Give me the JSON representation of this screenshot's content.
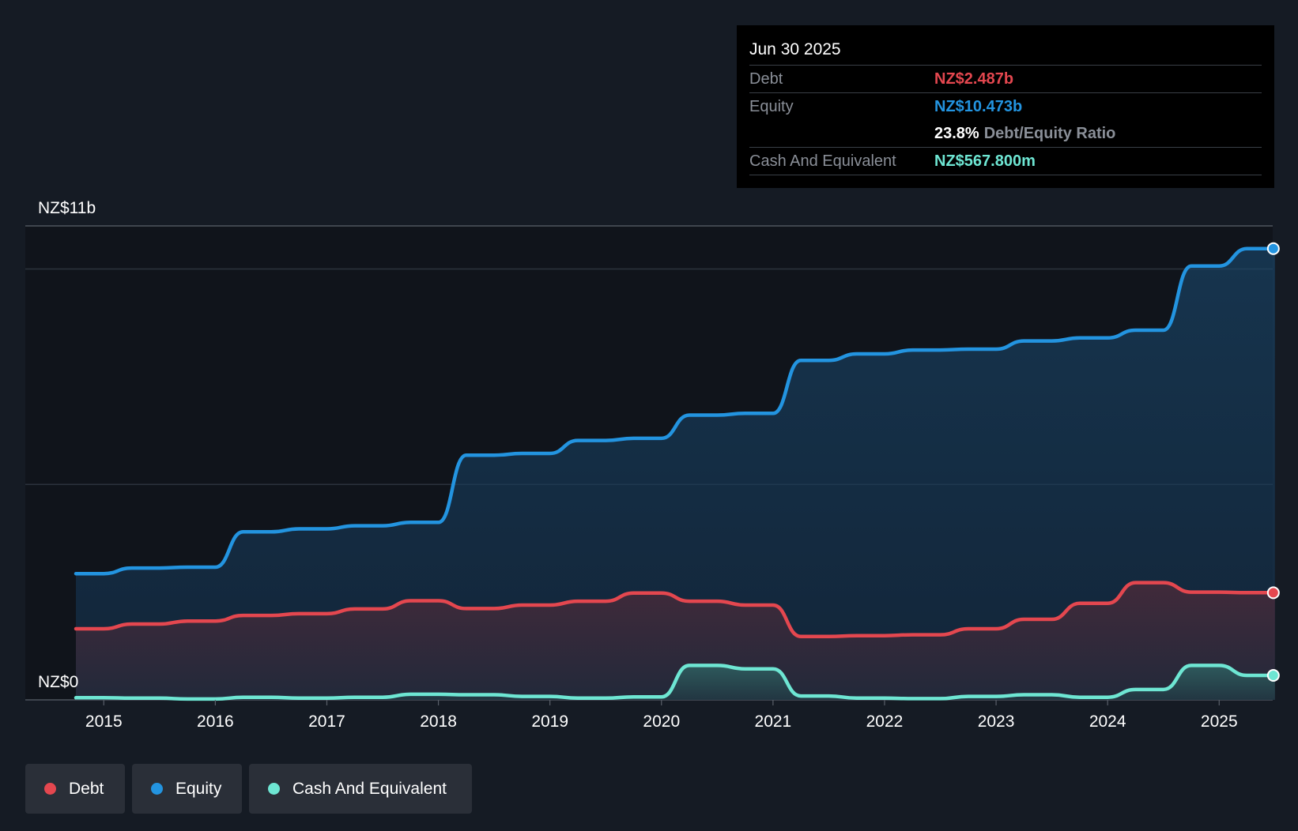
{
  "tooltip": {
    "date": "Jun 30 2025",
    "debt_label": "Debt",
    "debt_value": "NZ$2.487b",
    "equity_label": "Equity",
    "equity_value": "NZ$10.473b",
    "ratio_value": "23.8%",
    "ratio_label": "Debt/Equity Ratio",
    "cash_label": "Cash And Equivalent",
    "cash_value": "NZ$567.800m"
  },
  "legend": {
    "debt": "Debt",
    "equity": "Equity",
    "cash": "Cash And Equivalent"
  },
  "colors": {
    "debt": "#e4474f",
    "equity": "#2394e0",
    "cash": "#6ee6d3",
    "background": "#151b24"
  },
  "chart_data": {
    "type": "area",
    "ylabel_top": "NZ$11b",
    "ylabel_bottom": "NZ$0",
    "ylim": [
      0,
      11
    ],
    "xlim": [
      2014.75,
      2025.5
    ],
    "x_ticks": [
      "2015",
      "2016",
      "2017",
      "2018",
      "2019",
      "2020",
      "2021",
      "2022",
      "2023",
      "2024",
      "2025"
    ],
    "series": [
      {
        "name": "Equity",
        "color": "#2394e0",
        "points": [
          [
            2014.75,
            2.93
          ],
          [
            2015,
            2.93
          ],
          [
            2015.25,
            3.06
          ],
          [
            2015.5,
            3.06
          ],
          [
            2015.75,
            3.08
          ],
          [
            2016,
            3.08
          ],
          [
            2016.25,
            3.9
          ],
          [
            2016.5,
            3.9
          ],
          [
            2016.75,
            3.97
          ],
          [
            2017,
            3.97
          ],
          [
            2017.25,
            4.04
          ],
          [
            2017.5,
            4.04
          ],
          [
            2017.75,
            4.12
          ],
          [
            2018,
            4.12
          ],
          [
            2018.25,
            5.68
          ],
          [
            2018.5,
            5.68
          ],
          [
            2018.75,
            5.72
          ],
          [
            2019,
            5.72
          ],
          [
            2019.25,
            6.02
          ],
          [
            2019.5,
            6.02
          ],
          [
            2019.75,
            6.07
          ],
          [
            2020,
            6.07
          ],
          [
            2020.25,
            6.61
          ],
          [
            2020.5,
            6.61
          ],
          [
            2020.75,
            6.65
          ],
          [
            2021,
            6.65
          ],
          [
            2021.25,
            7.88
          ],
          [
            2021.5,
            7.88
          ],
          [
            2021.75,
            8.03
          ],
          [
            2022,
            8.03
          ],
          [
            2022.25,
            8.12
          ],
          [
            2022.5,
            8.12
          ],
          [
            2022.75,
            8.14
          ],
          [
            2023,
            8.14
          ],
          [
            2023.25,
            8.33
          ],
          [
            2023.5,
            8.33
          ],
          [
            2023.75,
            8.4
          ],
          [
            2024,
            8.4
          ],
          [
            2024.25,
            8.58
          ],
          [
            2024.5,
            8.58
          ],
          [
            2024.75,
            10.07
          ],
          [
            2025,
            10.07
          ],
          [
            2025.25,
            10.473
          ],
          [
            2025.5,
            10.473
          ]
        ]
      },
      {
        "name": "Debt",
        "color": "#e4474f",
        "points": [
          [
            2014.75,
            1.65
          ],
          [
            2015,
            1.65
          ],
          [
            2015.25,
            1.76
          ],
          [
            2015.5,
            1.76
          ],
          [
            2015.75,
            1.83
          ],
          [
            2016,
            1.83
          ],
          [
            2016.25,
            1.96
          ],
          [
            2016.5,
            1.96
          ],
          [
            2016.75,
            2.0
          ],
          [
            2017,
            2.0
          ],
          [
            2017.25,
            2.11
          ],
          [
            2017.5,
            2.11
          ],
          [
            2017.75,
            2.3
          ],
          [
            2018,
            2.3
          ],
          [
            2018.25,
            2.12
          ],
          [
            2018.5,
            2.12
          ],
          [
            2018.75,
            2.2
          ],
          [
            2019,
            2.2
          ],
          [
            2019.25,
            2.29
          ],
          [
            2019.5,
            2.29
          ],
          [
            2019.75,
            2.48
          ],
          [
            2020,
            2.48
          ],
          [
            2020.25,
            2.29
          ],
          [
            2020.5,
            2.29
          ],
          [
            2020.75,
            2.2
          ],
          [
            2021,
            2.2
          ],
          [
            2021.25,
            1.47
          ],
          [
            2021.5,
            1.47
          ],
          [
            2021.75,
            1.49
          ],
          [
            2022,
            1.49
          ],
          [
            2022.25,
            1.51
          ],
          [
            2022.5,
            1.51
          ],
          [
            2022.75,
            1.65
          ],
          [
            2023,
            1.65
          ],
          [
            2023.25,
            1.87
          ],
          [
            2023.5,
            1.87
          ],
          [
            2023.75,
            2.24
          ],
          [
            2024,
            2.24
          ],
          [
            2024.25,
            2.72
          ],
          [
            2024.5,
            2.72
          ],
          [
            2024.75,
            2.5
          ],
          [
            2025,
            2.5
          ],
          [
            2025.25,
            2.487
          ],
          [
            2025.5,
            2.487
          ]
        ]
      },
      {
        "name": "Cash And Equivalent",
        "color": "#6ee6d3",
        "points": [
          [
            2014.75,
            0.05
          ],
          [
            2015,
            0.05
          ],
          [
            2015.25,
            0.04
          ],
          [
            2015.5,
            0.04
          ],
          [
            2015.75,
            0.02
          ],
          [
            2016,
            0.02
          ],
          [
            2016.25,
            0.06
          ],
          [
            2016.5,
            0.06
          ],
          [
            2016.75,
            0.04
          ],
          [
            2017,
            0.04
          ],
          [
            2017.25,
            0.06
          ],
          [
            2017.5,
            0.06
          ],
          [
            2017.75,
            0.13
          ],
          [
            2018,
            0.13
          ],
          [
            2018.25,
            0.12
          ],
          [
            2018.5,
            0.12
          ],
          [
            2018.75,
            0.08
          ],
          [
            2019,
            0.08
          ],
          [
            2019.25,
            0.04
          ],
          [
            2019.5,
            0.04
          ],
          [
            2019.75,
            0.07
          ],
          [
            2020,
            0.07
          ],
          [
            2020.25,
            0.8
          ],
          [
            2020.5,
            0.8
          ],
          [
            2020.75,
            0.72
          ],
          [
            2021,
            0.72
          ],
          [
            2021.25,
            0.09
          ],
          [
            2021.5,
            0.09
          ],
          [
            2021.75,
            0.04
          ],
          [
            2022,
            0.04
          ],
          [
            2022.25,
            0.03
          ],
          [
            2022.5,
            0.03
          ],
          [
            2022.75,
            0.08
          ],
          [
            2023,
            0.08
          ],
          [
            2023.25,
            0.12
          ],
          [
            2023.5,
            0.12
          ],
          [
            2023.75,
            0.06
          ],
          [
            2024,
            0.06
          ],
          [
            2024.25,
            0.24
          ],
          [
            2024.5,
            0.24
          ],
          [
            2024.75,
            0.8
          ],
          [
            2025,
            0.8
          ],
          [
            2025.25,
            0.568
          ],
          [
            2025.5,
            0.568
          ]
        ]
      }
    ]
  }
}
